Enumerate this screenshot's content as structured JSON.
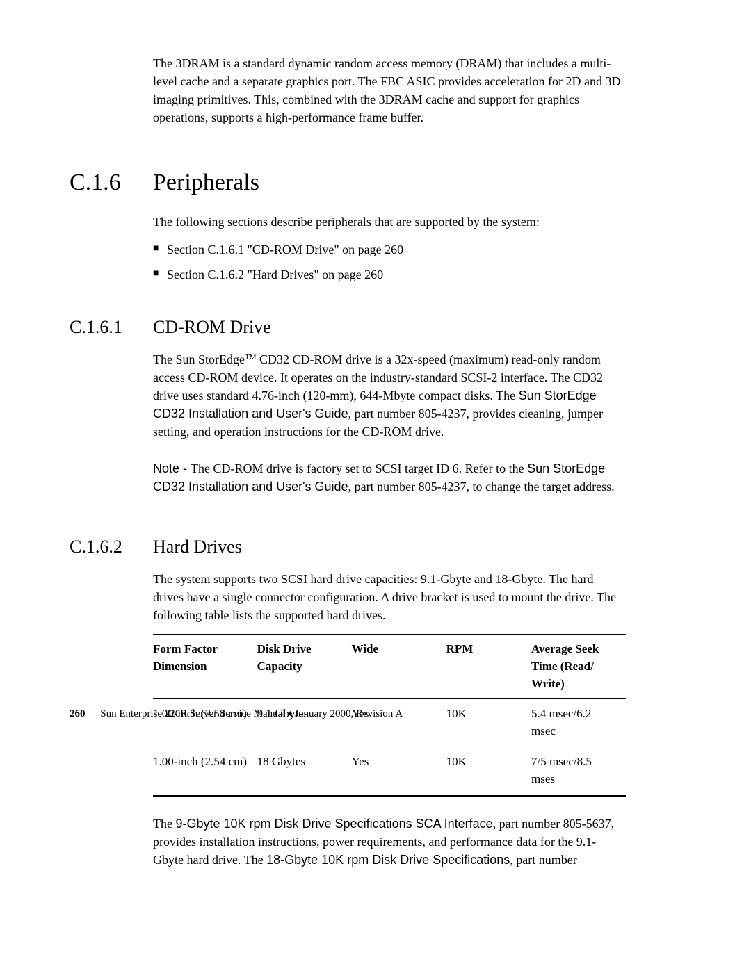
{
  "intro": "The 3DRAM is a standard dynamic random access memory (DRAM) that includes a multi-level cache and a separate graphics port. The FBC ASIC provides acceleration for 2D and 3D imaging primitives. This, combined with the 3DRAM cache and support for graphics operations, supports a high-performance frame buffer.",
  "section_c16": {
    "number": "C.1.6",
    "title": "Peripherals",
    "intro": "The following sections describe peripherals that are supported by the system:",
    "bullets": [
      "Section C.1.6.1 \"CD-ROM Drive\" on page 260",
      "Section C.1.6.2 \"Hard Drives\" on page 260"
    ]
  },
  "section_c161": {
    "number": "C.1.6.1",
    "title": "CD-ROM Drive",
    "para_pre": "The Sun StorEdge",
    "tm": "TM",
    "para_mid1": " CD32 CD-ROM drive is a 32x-speed (maximum) read-only random access CD-ROM device. It operates on the industry-standard SCSI-2 interface. The CD32 drive uses standard 4.76-inch (120-mm), 644-Mbyte compact disks. The ",
    "guide1": "Sun StorEdge CD32 Installation and User's Guide",
    "para_mid2": ", part number 805-4237, provides cleaning, jumper setting, and operation instructions for the CD-ROM drive.",
    "note_label": "Note - ",
    "note_pre": "The CD-ROM drive is factory set to SCSI target ID 6. Refer to the ",
    "note_guide": "Sun StorEdge CD32 Installation and User's Guide",
    "note_post": ", part number 805-4237, to change the target address."
  },
  "section_c162": {
    "number": "C.1.6.2",
    "title": "Hard Drives",
    "intro": "The system supports two SCSI hard drive capacities: 9.1-Gbyte and 18-Gbyte. The hard drives have a single connector configuration. A drive bracket is used to mount the drive. The following table lists the supported hard drives.",
    "table": {
      "columns": [
        "Form Factor Dimension",
        "Disk Drive Capacity",
        "Wide",
        "RPM",
        "Average Seek Time (Read/ Write)"
      ],
      "col_widths": [
        "22%",
        "20%",
        "20%",
        "18%",
        "20%"
      ],
      "rows": [
        [
          "1.00-inch (2.54 cm)",
          "9.1 Gbytes",
          "Yes",
          "10K",
          "5.4 msec/6.2 msec"
        ],
        [
          "1.00-inch (2.54 cm)",
          "18 Gbytes",
          "Yes",
          "10K",
          "7/5 msec/8.5 mses"
        ]
      ]
    },
    "closing_pre": "The ",
    "closing_doc1": "9-Gbyte 10K rpm Disk Drive Specifications SCA Interface",
    "closing_mid": ", part number 805-5637, provides installation instructions, power requirements, and performance data for the 9.1-Gbyte hard drive. The ",
    "closing_doc2": "18-Gbyte 10K rpm Disk Drive Specifications",
    "closing_post": ", part number"
  },
  "footer": {
    "page_number": "260",
    "text_pre": "Sun Enterprise 220R Server Service Manual ",
    "diamond": "♦",
    "text_post": " January 2000, Revision A"
  }
}
